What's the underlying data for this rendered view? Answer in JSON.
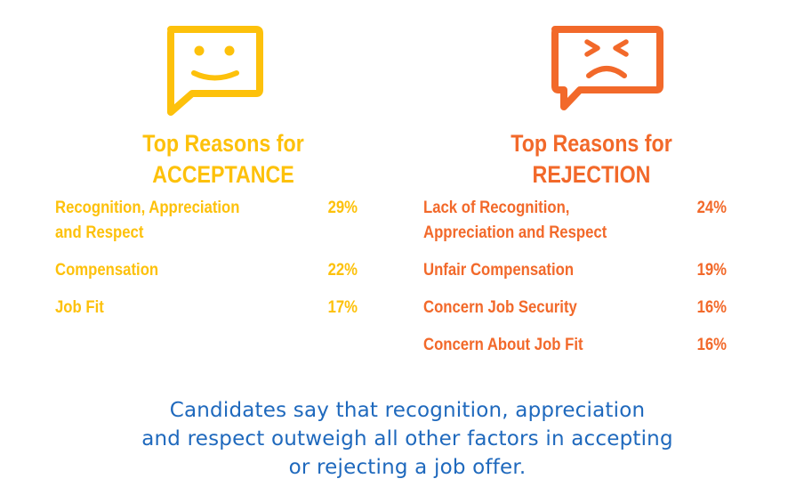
{
  "colors": {
    "acceptance": "#fdc10b",
    "rejection": "#f2692a",
    "summary": "#1f69bd"
  },
  "acceptance": {
    "icon": "happy-face-speech-bubble-icon",
    "heading_line1": "Top Reasons for",
    "heading_line2": "ACCEPTANCE",
    "reasons": [
      {
        "label_line1": "Recognition, Appreciation",
        "label_line2": "and Respect",
        "percent": "29%"
      },
      {
        "label_line1": "Compensation",
        "percent": "22%"
      },
      {
        "label_line1": "Job Fit",
        "percent": "17%"
      }
    ]
  },
  "rejection": {
    "icon": "angry-face-speech-bubble-icon",
    "heading_line1": "Top Reasons for",
    "heading_line2": "REJECTION",
    "reasons": [
      {
        "label_line1": "Lack of Recognition,",
        "label_line2": "Appreciation and Respect",
        "percent": "24%"
      },
      {
        "label_line1": "Unfair Compensation",
        "percent": "19%"
      },
      {
        "label_line1": "Concern Job Security",
        "percent": "16%"
      },
      {
        "label_line1": "Concern About Job Fit",
        "percent": "16%"
      }
    ]
  },
  "summary": {
    "line1": "Candidates say that recognition, appreciation",
    "line2": "and respect outweigh all other factors in accepting",
    "line3": "or rejecting a job offer."
  }
}
